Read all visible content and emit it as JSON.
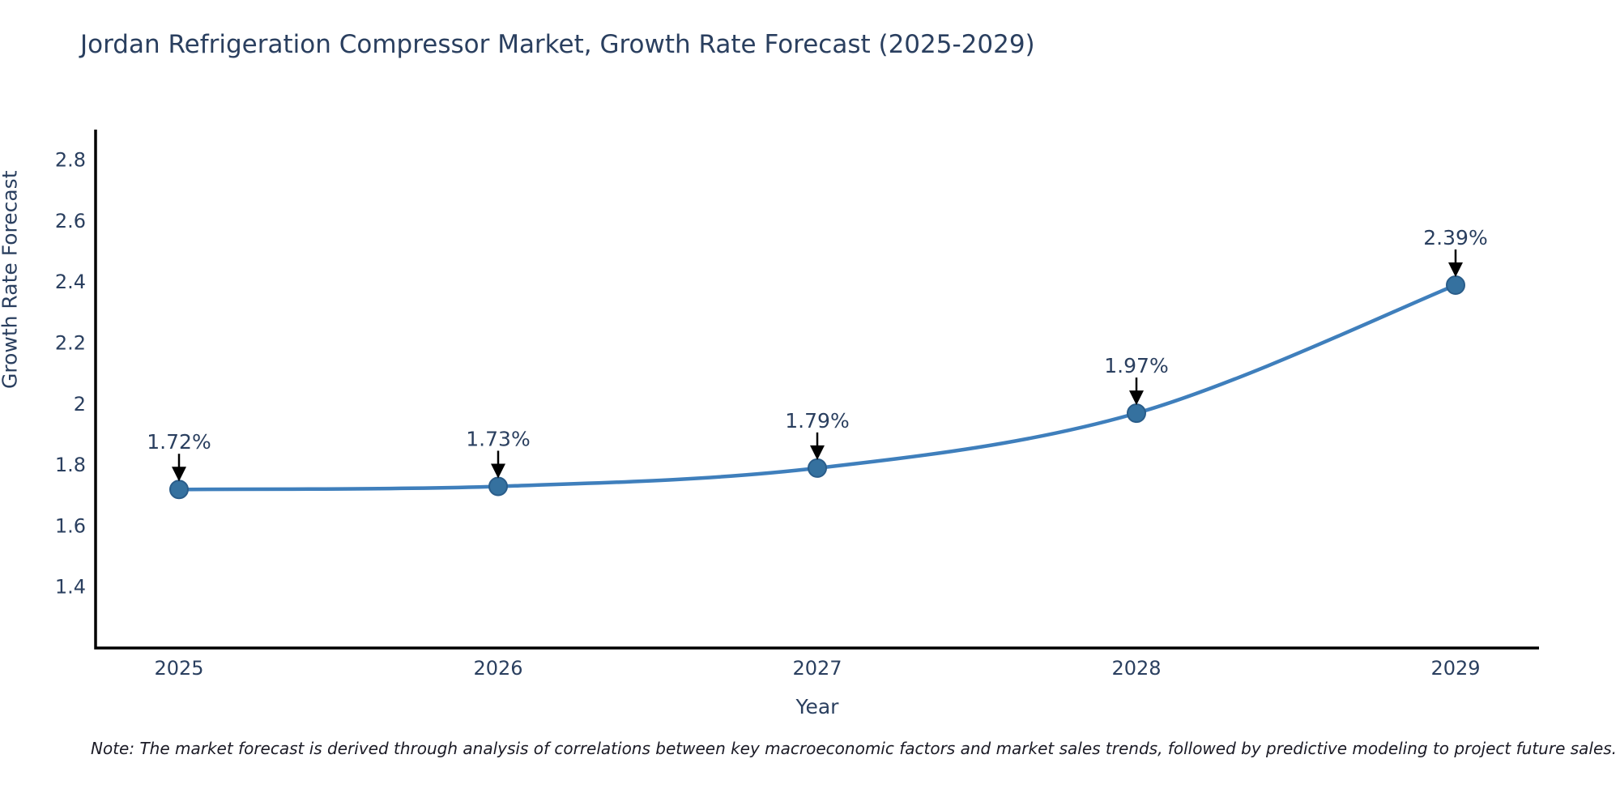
{
  "title": "Jordan Refrigeration Compressor Market, Growth Rate Forecast (2025-2029)",
  "note": "Note: The market forecast is derived through analysis of correlations between key macroeconomic factors and market sales trends, followed by predictive modeling to project future sales.",
  "colors": {
    "text": "#2a3f5f",
    "axis": "#000000",
    "line": "#3f7fbc",
    "marker_fill": "#35719f",
    "marker_stroke": "#2a5d8a",
    "arrow": "#000000",
    "note_text": "#1b1b26",
    "background": "#ffffff"
  },
  "chart_data": {
    "type": "line",
    "title": "Jordan Refrigeration Compressor Market, Growth Rate Forecast (2025-2029)",
    "xlabel": "Year",
    "ylabel": "Growth Rate Forecast",
    "x": [
      2025,
      2026,
      2027,
      2028,
      2029
    ],
    "series": [
      {
        "name": "Growth Rate Forecast",
        "values": [
          1.72,
          1.73,
          1.79,
          1.97,
          2.39
        ]
      }
    ],
    "point_labels": [
      "1.72%",
      "1.73%",
      "1.79%",
      "1.97%",
      "2.39%"
    ],
    "yticks": [
      1.4,
      1.6,
      1.8,
      2,
      2.2,
      2.4,
      2.6,
      2.8
    ],
    "ylim": [
      1.2,
      2.9
    ],
    "grid": false,
    "legend": "none",
    "line_shape": "spline",
    "marker": "circle",
    "annotation_arrows": true
  }
}
